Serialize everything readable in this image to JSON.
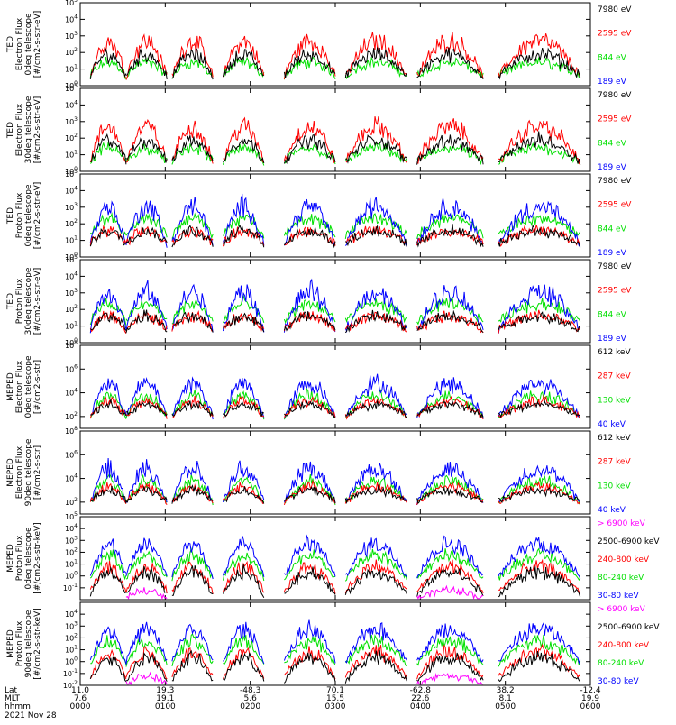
{
  "colors": {
    "black": "#000000",
    "red": "#ff0000",
    "green": "#00e000",
    "blue": "#0000ff",
    "magenta": "#ff00ff"
  },
  "chart_data": {
    "type": "line",
    "date_label": "2021 Nov 28",
    "footer": {
      "row_labels": [
        "Lat",
        "MLT",
        "hhmm"
      ],
      "columns": [
        {
          "lat": "11.0",
          "mlt": "7.6",
          "hhmm": "0000"
        },
        {
          "lat": "19.3",
          "mlt": "19.1",
          "hhmm": "0100"
        },
        {
          "lat": "-48.3",
          "mlt": "5.6",
          "hhmm": "0200"
        },
        {
          "lat": "70.1",
          "mlt": "15.5",
          "hhmm": "0300"
        },
        {
          "lat": "-62.8",
          "mlt": "22.6",
          "hhmm": "0400"
        },
        {
          "lat": "38.2",
          "mlt": "8.1",
          "hhmm": "0500"
        },
        {
          "lat": "-12.4",
          "mlt": "19.9",
          "hhmm": "0600"
        }
      ]
    },
    "panels": [
      {
        "ylabel": [
          "TED",
          "Electron Flux",
          "0deg telescope",
          "[#/cm2-s-str-eV]"
        ],
        "ylog": [
          0,
          5
        ],
        "yticks": [
          0,
          1,
          2,
          3,
          4,
          5
        ],
        "legend": [
          {
            "text": "7980 eV",
            "color": "black"
          },
          {
            "text": "2595 eV",
            "color": "red"
          },
          {
            "text": "844 eV",
            "color": "green"
          },
          {
            "text": "189 eV",
            "color": "blue"
          }
        ]
      },
      {
        "ylabel": [
          "TED",
          "Electron Flux",
          "30deg telescope",
          "[#/cm2-s-str-eV]"
        ],
        "ylog": [
          0,
          5
        ],
        "yticks": [
          0,
          1,
          2,
          3,
          4,
          5
        ],
        "legend": [
          {
            "text": "7980 eV",
            "color": "black"
          },
          {
            "text": "2595 eV",
            "color": "red"
          },
          {
            "text": "844 eV",
            "color": "green"
          },
          {
            "text": "189 eV",
            "color": "blue"
          }
        ]
      },
      {
        "ylabel": [
          "TED",
          "Proton Flux",
          "0deg telescope",
          "[#/cm2-s-str-eV]"
        ],
        "ylog": [
          0,
          5
        ],
        "yticks": [
          0,
          1,
          2,
          3,
          4,
          5
        ],
        "legend": [
          {
            "text": "7980 eV",
            "color": "black"
          },
          {
            "text": "2595 eV",
            "color": "red"
          },
          {
            "text": "844 eV",
            "color": "green"
          },
          {
            "text": "189 eV",
            "color": "blue"
          }
        ]
      },
      {
        "ylabel": [
          "TED",
          "Proton Flux",
          "30deg telescope",
          "[#/cm2-s-str-eV]"
        ],
        "ylog": [
          0,
          5
        ],
        "yticks": [
          0,
          1,
          2,
          3,
          4,
          5
        ],
        "legend": [
          {
            "text": "7980 eV",
            "color": "black"
          },
          {
            "text": "2595 eV",
            "color": "red"
          },
          {
            "text": "844 eV",
            "color": "green"
          },
          {
            "text": "189 eV",
            "color": "blue"
          }
        ]
      },
      {
        "ylabel": [
          "MEPED",
          "Electron Flux",
          "0deg telescope",
          "[#/cm2-s-str]"
        ],
        "ylog": [
          1,
          8
        ],
        "yticks": [
          2,
          4,
          6,
          8
        ],
        "legend": [
          {
            "text": "612 keV",
            "color": "black"
          },
          {
            "text": "287 keV",
            "color": "red"
          },
          {
            "text": "130 keV",
            "color": "green"
          },
          {
            "text": "40 keV",
            "color": "blue"
          }
        ]
      },
      {
        "ylabel": [
          "MEPED",
          "Electron Flux",
          "90deg telescope",
          "[#/cm2-s-str]"
        ],
        "ylog": [
          1,
          8
        ],
        "yticks": [
          2,
          4,
          6,
          8
        ],
        "legend": [
          {
            "text": "612 keV",
            "color": "black"
          },
          {
            "text": "287 keV",
            "color": "red"
          },
          {
            "text": "130 keV",
            "color": "green"
          },
          {
            "text": "40 keV",
            "color": "blue"
          }
        ]
      },
      {
        "ylabel": [
          "MEPED",
          "Proton Flux",
          "0deg telescope",
          "[#/cm2-s-str-keV]"
        ],
        "ylog": [
          -2,
          5
        ],
        "yticks": [
          -1,
          0,
          1,
          2,
          3,
          4,
          5
        ],
        "legend": [
          {
            "text": "> 6900 keV",
            "color": "magenta"
          },
          {
            "text": "2500-6900 keV",
            "color": "black"
          },
          {
            "text": "240-800 keV",
            "color": "red"
          },
          {
            "text": "80-240 keV",
            "color": "green"
          },
          {
            "text": "30-80 keV",
            "color": "blue"
          }
        ]
      },
      {
        "ylabel": [
          "MEPED",
          "Proton Flux",
          "90deg telescope",
          "[#/cm2-s-str-keV]"
        ],
        "ylog": [
          -2,
          5
        ],
        "yticks": [
          -2,
          -1,
          0,
          1,
          2,
          3,
          4
        ],
        "legend": [
          {
            "text": "> 6900 keV",
            "color": "magenta"
          },
          {
            "text": "2500-6900 keV",
            "color": "black"
          },
          {
            "text": "240-800 keV",
            "color": "red"
          },
          {
            "text": "80-240 keV",
            "color": "green"
          },
          {
            "text": "30-80 keV",
            "color": "blue"
          }
        ]
      }
    ]
  }
}
